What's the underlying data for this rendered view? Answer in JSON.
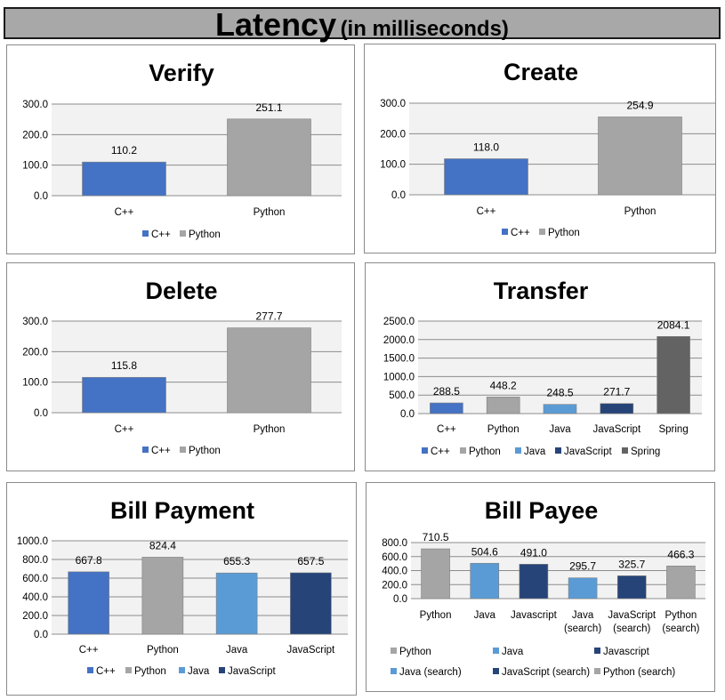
{
  "header": {
    "title": "Latency",
    "subtitle": "(in milliseconds)"
  },
  "colors": {
    "cpp": "#4472c4",
    "python": "#a5a5a5",
    "java": "#5b9bd5",
    "javascript": "#264478",
    "spring": "#636363"
  },
  "chart_data": [
    {
      "type": "bar",
      "title": "Verify",
      "categories": [
        "C++",
        "Python"
      ],
      "values": [
        110.2,
        251.1
      ],
      "ylim": [
        0,
        300
      ],
      "yticks": [
        "0.0",
        "100.0",
        "200.0",
        "300.0"
      ],
      "tick_step": 100,
      "colors": [
        "#4472c4",
        "#a5a5a5"
      ],
      "labels": [
        "110.2",
        "251.1"
      ],
      "legend": [
        "C++",
        "Python"
      ],
      "legend_position": "bottom"
    },
    {
      "type": "bar",
      "title": "Create",
      "categories": [
        "C++",
        "Python"
      ],
      "values": [
        118.0,
        254.9
      ],
      "ylim": [
        0,
        300
      ],
      "yticks": [
        "0.0",
        "100.0",
        "200.0",
        "300.0"
      ],
      "tick_step": 100,
      "colors": [
        "#4472c4",
        "#a5a5a5"
      ],
      "labels": [
        "118.0",
        "254.9"
      ],
      "legend": [
        "C++",
        "Python"
      ],
      "legend_position": "bottom"
    },
    {
      "type": "bar",
      "title": "Delete",
      "categories": [
        "C++",
        "Python"
      ],
      "values": [
        115.8,
        277.7
      ],
      "ylim": [
        0,
        300
      ],
      "yticks": [
        "0.0",
        "100.0",
        "200.0",
        "300.0"
      ],
      "tick_step": 100,
      "colors": [
        "#4472c4",
        "#a5a5a5"
      ],
      "labels": [
        "115.8",
        "277.7"
      ],
      "legend": [
        "C++",
        "Python"
      ],
      "legend_position": "bottom"
    },
    {
      "type": "bar",
      "title": "Transfer",
      "categories": [
        "C++",
        "Python",
        "Java",
        "JavaScript",
        "Spring"
      ],
      "values": [
        288.5,
        448.2,
        248.5,
        271.7,
        2084.1
      ],
      "ylim": [
        0,
        2500
      ],
      "yticks": [
        "0.0",
        "500.0",
        "1000.0",
        "1500.0",
        "2000.0",
        "2500.0"
      ],
      "tick_step": 500,
      "colors": [
        "#4472c4",
        "#a5a5a5",
        "#5b9bd5",
        "#264478",
        "#636363"
      ],
      "labels": [
        "288.5",
        "448.2",
        "248.5",
        "271.7",
        "2084.1"
      ],
      "legend": [
        "C++",
        "Python",
        "Java",
        "JavaScript",
        "Spring"
      ],
      "legend_position": "bottom"
    },
    {
      "type": "bar",
      "title": "Bill Payment",
      "categories": [
        "C++",
        "Python",
        "Java",
        "JavaScript"
      ],
      "values": [
        667.8,
        824.4,
        655.3,
        657.5
      ],
      "ylim": [
        0,
        1000
      ],
      "yticks": [
        "0.0",
        "200.0",
        "400.0",
        "600.0",
        "800.0",
        "1000.0"
      ],
      "tick_step": 200,
      "colors": [
        "#4472c4",
        "#a5a5a5",
        "#5b9bd5",
        "#264478"
      ],
      "labels": [
        "667.8",
        "824.4",
        "655.3",
        "657.5"
      ],
      "legend": [
        "C++",
        "Python",
        "Java",
        "JavaScript"
      ],
      "legend_position": "bottom"
    },
    {
      "type": "bar",
      "title": "Bill Payee",
      "categories": [
        "Python",
        "Java",
        "Javascript",
        "Java\n(search)",
        "JavaScript\n(search)",
        "Python\n(search)"
      ],
      "values": [
        710.5,
        504.6,
        491.0,
        295.7,
        325.7,
        466.3
      ],
      "ylim": [
        0,
        800
      ],
      "yticks": [
        "0.0",
        "200.0",
        "400.0",
        "600.0",
        "800.0"
      ],
      "tick_step": 200,
      "colors": [
        "#a5a5a5",
        "#5b9bd5",
        "#264478",
        "#5b9bd5",
        "#264478",
        "#a5a5a5"
      ],
      "labels": [
        "710.5",
        "504.6",
        "491.0",
        "295.7",
        "325.7",
        "466.3"
      ],
      "legend": [
        "Python",
        "Java",
        "Javascript",
        "Java (search)",
        "JavaScript (search)",
        "Python (search)"
      ],
      "legend_position": "bottom"
    }
  ]
}
